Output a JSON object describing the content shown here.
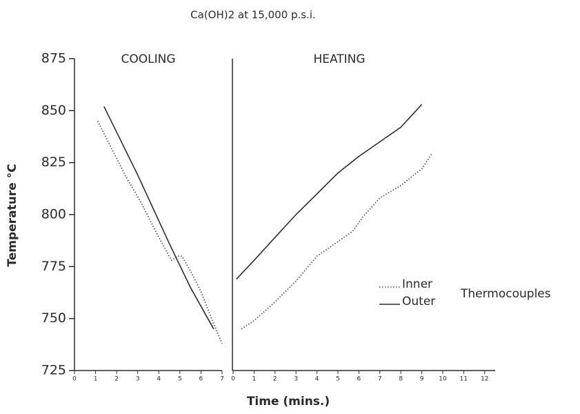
{
  "chart_data": [
    {
      "type": "line",
      "title": "Ca(OH)2 at 15,000 p.s.i.",
      "label": "COOLING",
      "xlabel": "Time (mins.)",
      "ylabel": "Temperature °C",
      "xlim": [
        0,
        7
      ],
      "xticks": [
        0,
        1,
        2,
        3,
        4,
        5,
        6,
        7
      ],
      "ylim": [
        725,
        875
      ],
      "yticks": [
        725,
        750,
        775,
        800,
        825,
        850,
        875
      ],
      "series": [
        {
          "name": "Inner",
          "color": "#555555",
          "dash": "dotted",
          "x": [
            1.1,
            1.4,
            2.4,
            3.2,
            3.9,
            4.6,
            4.9,
            5.1,
            5.6,
            6.0,
            6.5,
            7.0
          ],
          "values": [
            845,
            839,
            819,
            805,
            791,
            778,
            780,
            780,
            771,
            763,
            750,
            738
          ]
        },
        {
          "name": "Outer",
          "color": "#2a2a2a",
          "dash": "solid",
          "x": [
            1.4,
            3.0,
            4.5,
            5.5,
            6.6
          ],
          "values": [
            852,
            819,
            786,
            765,
            745
          ]
        }
      ]
    },
    {
      "type": "line",
      "label": "HEATING",
      "annotation": "Thermocouples",
      "xlim": [
        0,
        12.5
      ],
      "xticks": [
        0,
        1,
        2,
        3,
        4,
        5,
        6,
        7,
        8,
        9,
        10,
        11,
        12
      ],
      "ylim": [
        725,
        875
      ],
      "series": [
        {
          "name": "Inner",
          "color": "#555555",
          "dash": "dotted",
          "x": [
            0.4,
            1,
            2,
            3,
            4,
            5,
            5.7,
            6.2,
            7,
            8,
            9,
            9.5
          ],
          "values": [
            745,
            749,
            758,
            768,
            780,
            787,
            792,
            799,
            808,
            814,
            822,
            829.6
          ]
        },
        {
          "name": "Outer",
          "color": "#2a2a2a",
          "dash": "solid",
          "x": [
            0.16,
            1,
            2,
            3,
            4,
            5,
            6,
            7,
            8,
            9
          ],
          "values": [
            769,
            778,
            789,
            800,
            810,
            820,
            828,
            835,
            842,
            853
          ]
        }
      ]
    }
  ]
}
